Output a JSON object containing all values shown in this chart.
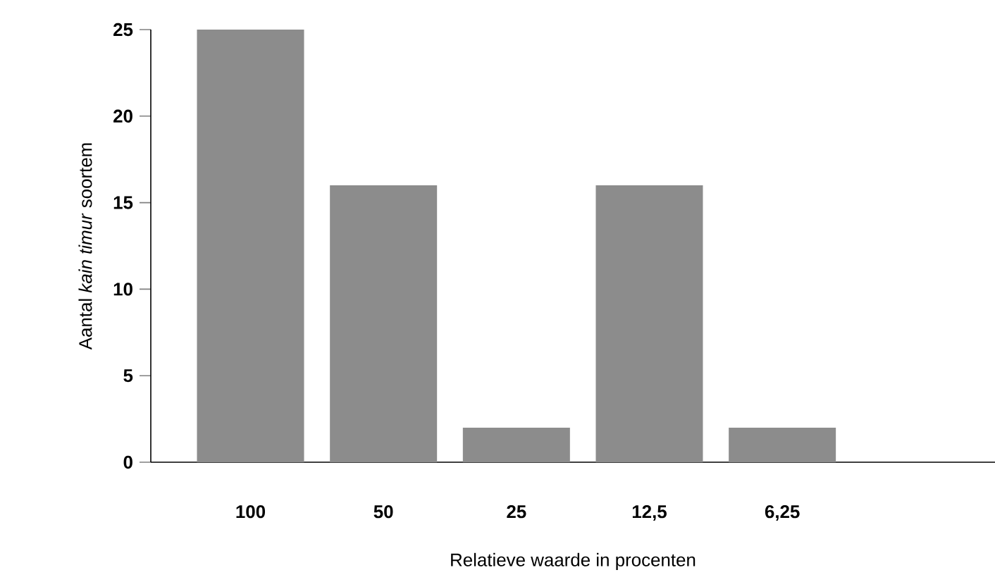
{
  "chart_data": {
    "type": "bar",
    "xlabel": "Relatieve waarde in procenten",
    "ylabel": "Aantal *kain timur* soortem",
    "categories": [
      "100",
      "50",
      "25",
      "12,5",
      "6,25"
    ],
    "values": [
      25,
      16,
      2,
      16,
      2
    ],
    "color": "#8c8c8c",
    "ylim": [
      0,
      25
    ],
    "yticks": [
      0,
      5,
      10,
      15,
      20,
      25
    ],
    "grid": false
  }
}
